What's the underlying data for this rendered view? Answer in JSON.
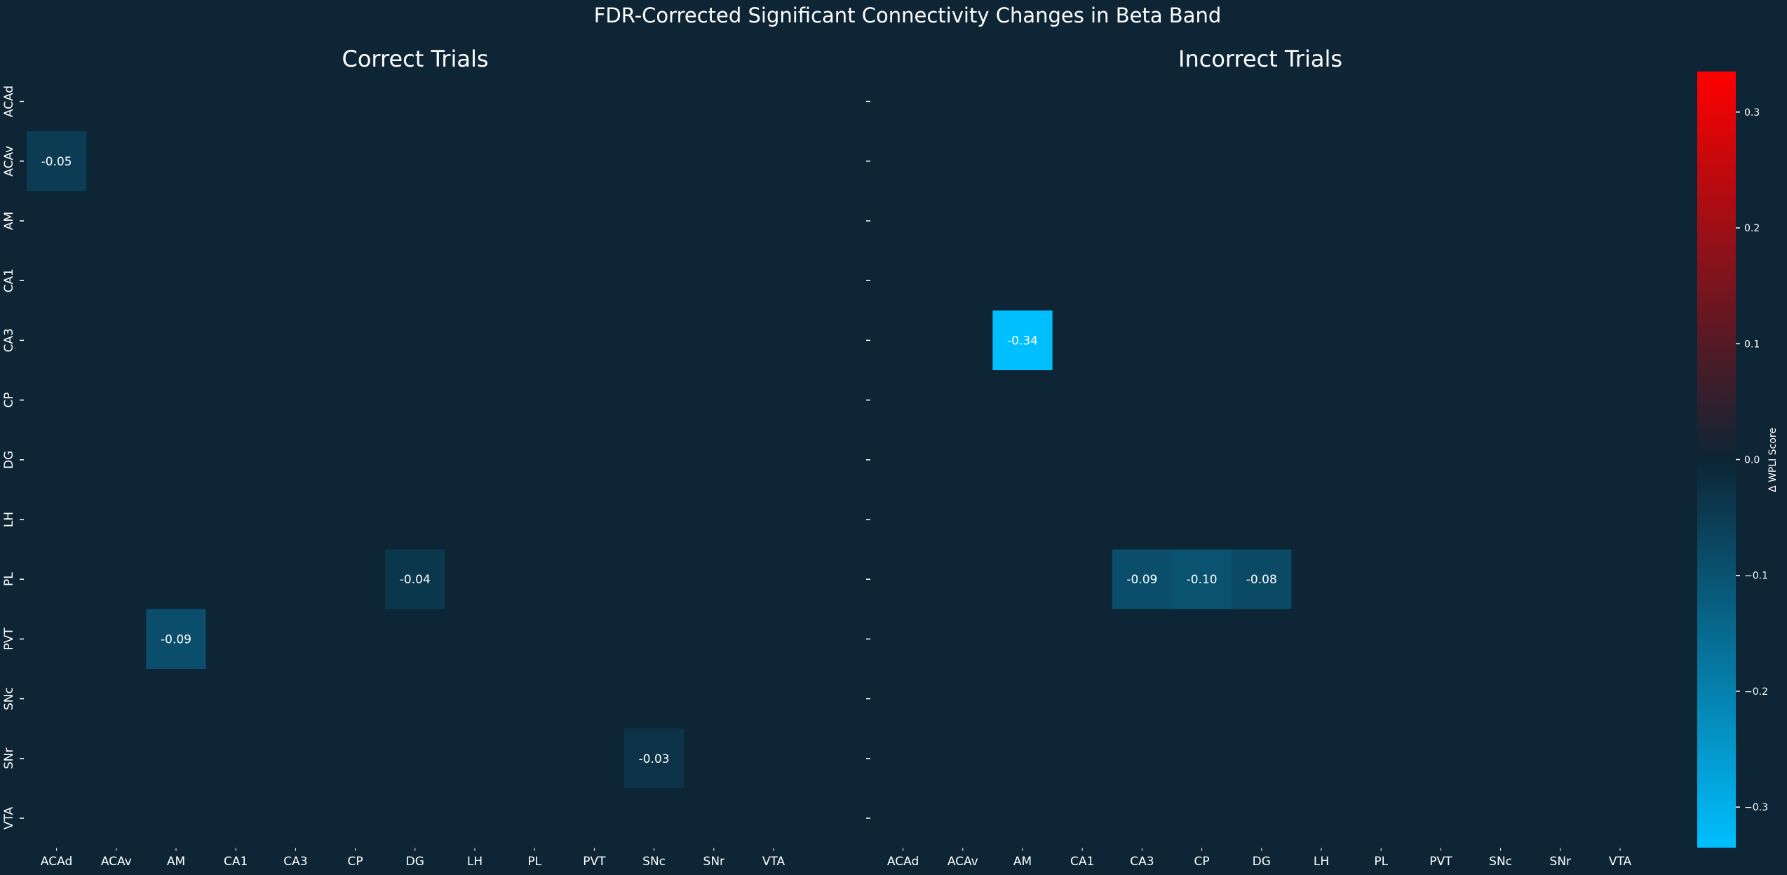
{
  "figure": {
    "title": "FDR-Corrected Significant Connectivity Changes in Beta Band",
    "background": "#0d2535"
  },
  "chart_data": {
    "type": "heatmap",
    "title": "FDR-Corrected Significant Connectivity Changes in Beta Band",
    "regions": [
      "ACAd",
      "ACAv",
      "AM",
      "CA1",
      "CA3",
      "CP",
      "DG",
      "LH",
      "PL",
      "PVT",
      "SNc",
      "SNr",
      "VTA"
    ],
    "panels": [
      {
        "title": "Correct Trials",
        "cells": [
          {
            "row": "ACAv",
            "col": "ACAd",
            "value": -0.05
          },
          {
            "row": "PL",
            "col": "DG",
            "value": -0.04
          },
          {
            "row": "PVT",
            "col": "AM",
            "value": -0.09
          },
          {
            "row": "SNr",
            "col": "SNc",
            "value": -0.03
          }
        ]
      },
      {
        "title": "Incorrect Trials",
        "cells": [
          {
            "row": "CA3",
            "col": "AM",
            "value": -0.34
          },
          {
            "row": "PL",
            "col": "CA3",
            "value": -0.09
          },
          {
            "row": "PL",
            "col": "CP",
            "value": -0.1
          },
          {
            "row": "PL",
            "col": "DG",
            "value": -0.08
          }
        ]
      }
    ],
    "colorbar": {
      "label": "Δ WPLI Score",
      "vmin": -0.335,
      "vmax": 0.335,
      "ticks": [
        -0.3,
        -0.2,
        -0.1,
        0.0,
        0.1,
        0.2,
        0.3
      ],
      "tick_labels": [
        "−0.3",
        "−0.2",
        "−0.1",
        "0.0",
        "0.1",
        "0.2",
        "0.3"
      ],
      "colors": {
        "negative": "#00bfff",
        "center": "#0d2535",
        "positive": "#ff0000"
      }
    },
    "grid": false
  }
}
